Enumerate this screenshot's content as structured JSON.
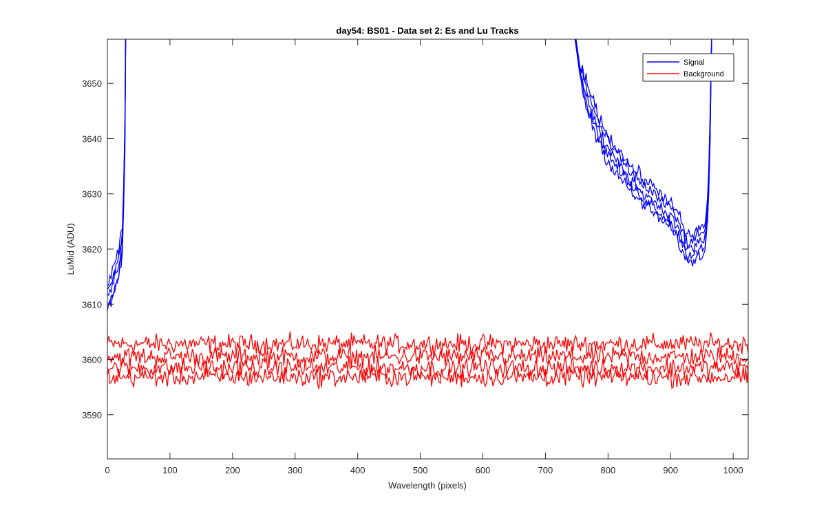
{
  "chart_data": {
    "type": "line",
    "title": "day54: BS01 - Data set 2: Es and Lu Tracks",
    "xlabel": "Wavelength (pixels)",
    "ylabel": "LuMid (ADU)",
    "xlim": [
      0,
      1024
    ],
    "ylim": [
      3582,
      3658
    ],
    "xticks": [
      0,
      100,
      200,
      300,
      400,
      500,
      600,
      700,
      800,
      900,
      1000
    ],
    "yticks": [
      3590,
      3600,
      3610,
      3620,
      3630,
      3640,
      3650
    ],
    "grid": false,
    "legend": {
      "location": "top-right",
      "entries": [
        {
          "label": "Signal",
          "color": "#0000ff"
        },
        {
          "label": "Background",
          "color": "#ff0000"
        }
      ]
    },
    "series": [
      {
        "name": "Signal",
        "color": "#0000ff",
        "traces": 5,
        "noise_amplitude": 1.2,
        "trace_offsets": [
          -1.2,
          0.0,
          1.0,
          2.3,
          3.5
        ],
        "left_segment": {
          "x": [
            0,
            5,
            10,
            15,
            20,
            25,
            28,
            30
          ],
          "y": [
            3610,
            3611,
            3613,
            3615,
            3617,
            3622,
            3640,
            3670
          ]
        },
        "right_segment": {
          "x": [
            745,
            755,
            765,
            780,
            800,
            820,
            840,
            860,
            880,
            900,
            915,
            925,
            935,
            945,
            955,
            960,
            963,
            965,
            968
          ],
          "y": [
            3660,
            3652,
            3647,
            3642,
            3637,
            3634,
            3631,
            3629,
            3627,
            3625,
            3622,
            3619,
            3619,
            3620,
            3621,
            3627,
            3640,
            3655,
            3670
          ]
        }
      },
      {
        "name": "Background",
        "color": "#ff0000",
        "traces": 4,
        "noise_amplitude": 1.7,
        "x_range": [
          0,
          1024
        ],
        "x_step": 2,
        "trace_levels": [
          3602.8,
          3600.5,
          3598.5,
          3596.8
        ]
      }
    ]
  }
}
